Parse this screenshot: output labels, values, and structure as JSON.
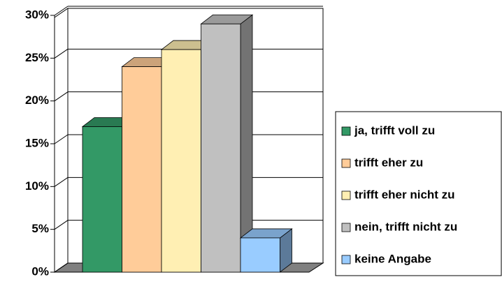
{
  "chart_data": {
    "type": "bar3d",
    "categories": [
      null
    ],
    "series": [
      {
        "name": "ja, trifft voll zu",
        "color": "#339966",
        "values": [
          17
        ]
      },
      {
        "name": "trifft eher zu",
        "color": "#ffcc99",
        "values": [
          24
        ]
      },
      {
        "name": "trifft eher nicht zu",
        "color": "#ffefb3",
        "values": [
          26
        ]
      },
      {
        "name": "nein, trifft nicht zu",
        "color": "#c0c0c0",
        "values": [
          29
        ]
      },
      {
        "name": "keine Angabe",
        "color": "#99ccff",
        "values": [
          4
        ]
      }
    ],
    "ylim": [
      0,
      30
    ],
    "yticks": [
      {
        "value": 0,
        "label": "0%"
      },
      {
        "value": 5,
        "label": "5%"
      },
      {
        "value": 10,
        "label": "10%"
      },
      {
        "value": 15,
        "label": "15%"
      },
      {
        "value": 20,
        "label": "20%"
      },
      {
        "value": 25,
        "label": "25%"
      },
      {
        "value": 30,
        "label": "30%"
      }
    ],
    "grid": true,
    "legend": "right"
  }
}
